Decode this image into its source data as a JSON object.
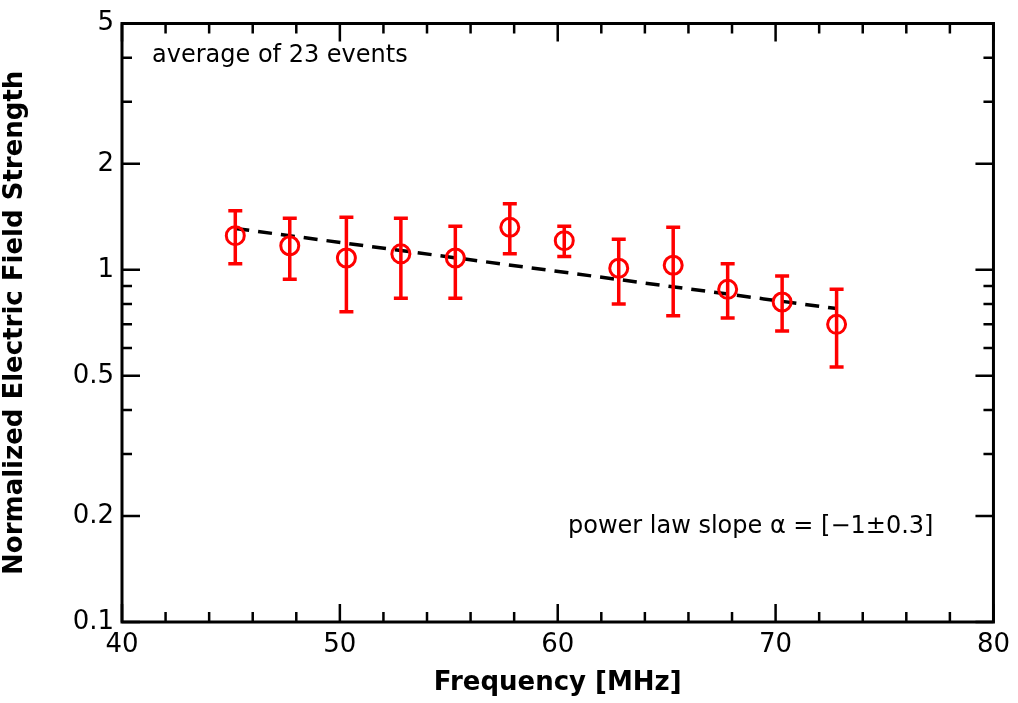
{
  "chart_data": {
    "type": "scatter",
    "xlabel": "Frequency [MHz]",
    "ylabel": "Normalized Electric Field Strength",
    "log": "y",
    "grid": false,
    "legend": false,
    "xlim": [
      40,
      80
    ],
    "xticks": [
      40,
      {
        "value": 42,
        "label": null
      },
      {
        "value": 44,
        "label": null
      },
      {
        "value": 46,
        "label": null
      },
      {
        "value": 48,
        "label": null
      },
      50,
      {
        "value": 52,
        "label": null
      },
      {
        "value": 54,
        "label": null
      },
      {
        "value": 56,
        "label": null
      },
      {
        "value": 58,
        "label": null
      },
      60,
      {
        "value": 62,
        "label": null
      },
      {
        "value": 64,
        "label": null
      },
      {
        "value": 66,
        "label": null
      },
      {
        "value": 68,
        "label": null
      },
      70,
      {
        "value": 72,
        "label": null
      },
      {
        "value": 74,
        "label": null
      },
      {
        "value": 76,
        "label": null
      },
      {
        "value": 78,
        "label": null
      },
      80
    ],
    "ylim": [
      0.1,
      5
    ],
    "yticks": [
      0.1,
      0.2,
      {
        "value": 0.3,
        "label": null
      },
      {
        "value": 0.4,
        "label": null
      },
      0.5,
      {
        "value": 0.6,
        "label": null
      },
      {
        "value": 0.7,
        "label": null
      },
      {
        "value": 0.8,
        "label": null
      },
      {
        "value": 0.9,
        "label": null
      },
      1,
      2,
      {
        "value": 3,
        "label": null
      },
      {
        "value": 4,
        "label": null
      },
      5
    ],
    "annotations": [
      "average of 23 events",
      "power law slope α = [−1±0.3]"
    ],
    "series": [
      {
        "color": "#ff0000",
        "marker": "circle",
        "x": [
          45.2,
          47.7,
          50.3,
          52.8,
          55.3,
          57.8,
          60.3,
          62.8,
          65.3,
          67.8,
          70.3,
          72.8
        ],
        "values": [
          1.25,
          1.17,
          1.08,
          1.11,
          1.08,
          1.32,
          1.21,
          1.01,
          1.03,
          0.88,
          0.81,
          0.7
        ],
        "errors": [
          [
            1.04,
            1.47
          ],
          [
            0.94,
            1.4
          ],
          [
            0.76,
            1.41
          ],
          [
            0.83,
            1.4
          ],
          [
            0.83,
            1.33
          ],
          [
            1.11,
            1.54
          ],
          [
            1.09,
            1.33
          ],
          [
            0.8,
            1.22
          ],
          [
            0.74,
            1.32
          ],
          [
            0.73,
            1.04
          ],
          [
            0.67,
            0.96
          ],
          [
            0.53,
            0.88
          ]
        ]
      },
      {
        "type": "line",
        "color": "#000000",
        "marker": "none",
        "line_style": "dashed",
        "x": [
          45.2,
          72.8
        ],
        "values": [
          1.31,
          0.776
        ]
      }
    ]
  }
}
